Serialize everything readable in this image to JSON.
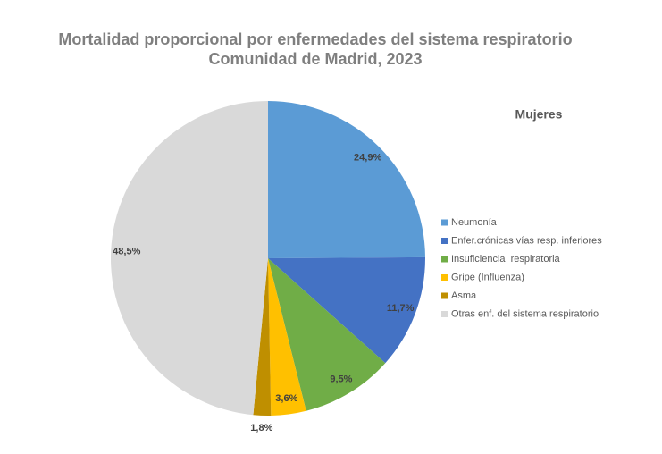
{
  "chart_data": {
    "type": "pie",
    "title": "Mortalidad proporcional por enfermedades del sistema respiratorio",
    "subtitle": "Comunidad de Madrid, 2023",
    "legend_title": "Mujeres",
    "categories": [
      "Neumonía",
      "Enfer.crónicas vías resp. inferiores",
      "Insuficiencia  respiratoria",
      "Gripe (Influenza)",
      "Asma",
      "Otras enf. del sistema respiratorio"
    ],
    "values": [
      24.9,
      11.7,
      9.5,
      3.6,
      1.8,
      48.5
    ],
    "value_labels": [
      "24,9%",
      "11,7%",
      "9,5%",
      "3,6%",
      "1,8%",
      "48,5%"
    ],
    "colors": [
      "#5b9bd5",
      "#4472c4",
      "#70ad47",
      "#ffc000",
      "#bf8f00",
      "#d9d9d9"
    ],
    "legend": "right"
  }
}
